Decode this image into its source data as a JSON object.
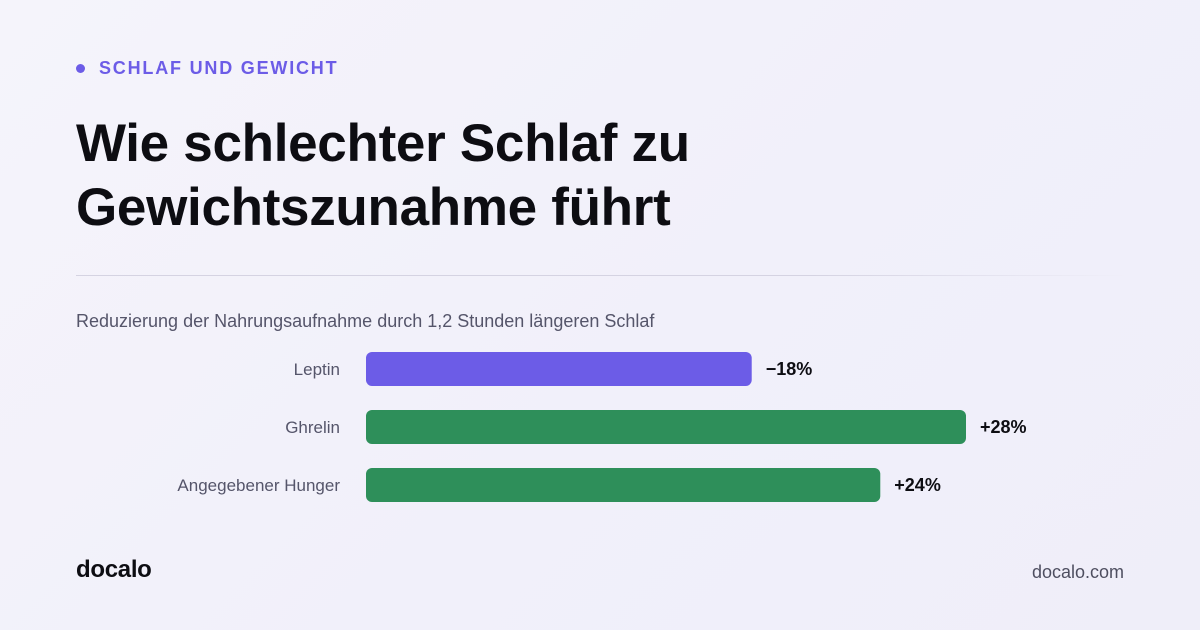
{
  "kicker": "SCHLAF UND GEWICHT",
  "title": "Wie schlechter Schlaf zu Gewichtszunahme führt",
  "subtitle": "Reduzierung der Nahrungsaufnahme durch 1,2 Stunden längeren Schlaf",
  "footer": {
    "brand": "docalo",
    "url": "docalo.com"
  },
  "colors": {
    "accent": "#6c5ce7",
    "negative_bar": "#6c5ce7",
    "positive_bar": "#2e8f5a",
    "text": "#0d0d12",
    "muted_text": "#55556a"
  },
  "chart_data": {
    "type": "bar",
    "orientation": "horizontal",
    "title": "Reduzierung der Nahrungsaufnahme durch 1,2 Stunden längeren Schlaf",
    "categories": [
      "Leptin",
      "Ghrelin",
      "Angegebener Hunger"
    ],
    "values": [
      -18,
      28,
      24
    ],
    "value_labels": [
      "−18%",
      "+28%",
      "+24%"
    ],
    "bar_colors": [
      "#6c5ce7",
      "#2e8f5a",
      "#2e8f5a"
    ],
    "unit": "%",
    "xlim": [
      0,
      28
    ],
    "grid": false,
    "legend": "none"
  }
}
